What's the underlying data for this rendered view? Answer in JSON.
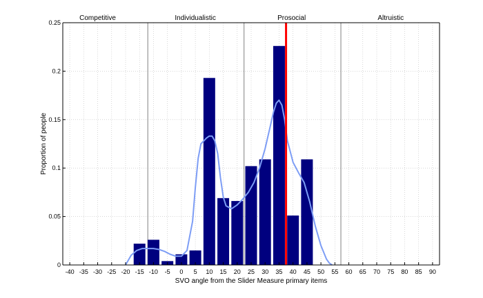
{
  "chart_data": {
    "type": "bar",
    "title": "",
    "xlabel": "SVO angle from the Slider Measure primary items",
    "ylabel": "Proportion of people",
    "xlim": [
      -42.5,
      92.5
    ],
    "ylim": [
      0,
      0.25
    ],
    "grid": true,
    "x_ticks": [
      -40,
      -35,
      -30,
      -25,
      -20,
      -15,
      -10,
      -5,
      0,
      5,
      10,
      15,
      20,
      25,
      30,
      35,
      40,
      45,
      50,
      55,
      60,
      65,
      70,
      75,
      80,
      85,
      90
    ],
    "y_ticks": [
      0,
      0.05,
      0.1,
      0.15,
      0.2,
      0.25
    ],
    "y_tick_labels": [
      "0",
      "0.05",
      "0.1",
      "0.15",
      "0.2",
      "0.25"
    ],
    "bars": {
      "x": [
        -15,
        -10,
        -5,
        0,
        5,
        10,
        15,
        20,
        25,
        30,
        35,
        40,
        45
      ],
      "values": [
        0.022,
        0.026,
        0.004,
        0.011,
        0.015,
        0.193,
        0.069,
        0.066,
        0.102,
        0.109,
        0.226,
        0.051,
        0.109
      ],
      "color": "#00007f"
    },
    "density_curve": {
      "color": "#7d9df5",
      "x": [
        -20,
        -18,
        -16,
        -14,
        -12,
        -10,
        -8,
        -6,
        -4,
        -2,
        0,
        2,
        4,
        5,
        6,
        7,
        8,
        9,
        10,
        11,
        12,
        13,
        14,
        15,
        16,
        18,
        20,
        22,
        24,
        26,
        28,
        30,
        32,
        33,
        34,
        35,
        36,
        37,
        38,
        40,
        42,
        44,
        46,
        48,
        50,
        52,
        53,
        54
      ],
      "y": [
        0,
        0.01,
        0.015,
        0.017,
        0.017,
        0.017,
        0.016,
        0.014,
        0.011,
        0.009,
        0.009,
        0.015,
        0.045,
        0.08,
        0.11,
        0.125,
        0.128,
        0.131,
        0.133,
        0.133,
        0.128,
        0.115,
        0.09,
        0.07,
        0.061,
        0.058,
        0.062,
        0.068,
        0.075,
        0.085,
        0.1,
        0.12,
        0.145,
        0.158,
        0.167,
        0.17,
        0.165,
        0.15,
        0.128,
        0.106,
        0.095,
        0.085,
        0.065,
        0.04,
        0.02,
        0.006,
        0.002,
        0
      ]
    },
    "threshold_line": {
      "x": 37.5,
      "color": "#ff0000"
    },
    "region_boundaries": [
      -12.04,
      22.45,
      57.15
    ],
    "regions": [
      {
        "label": "Competitive",
        "x": -30
      },
      {
        "label": "Individualistic",
        "x": 5
      },
      {
        "label": "Prosocial",
        "x": 39.5
      },
      {
        "label": "Altruistic",
        "x": 75
      }
    ]
  }
}
